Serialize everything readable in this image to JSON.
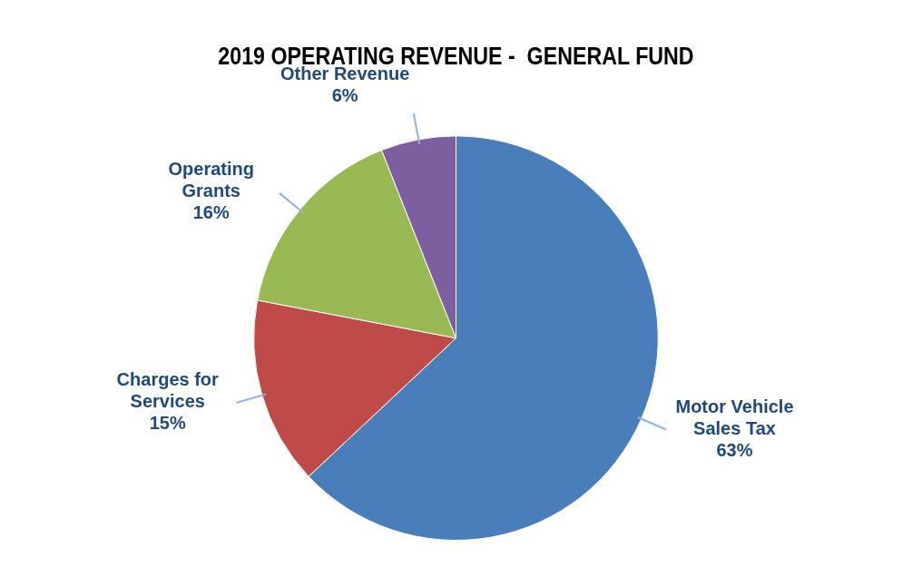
{
  "chart_data": {
    "type": "pie",
    "title": "2019 OPERATING REVENUE -  GENERAL FUND",
    "categories": [
      "Motor Vehicle Sales Tax",
      "Charges for Services",
      "Operating Grants",
      "Other Revenue"
    ],
    "values": [
      63,
      15,
      16,
      6
    ],
    "value_labels": [
      "63%",
      "15%",
      "16%",
      "6%"
    ],
    "colors": [
      "#4a7ebb",
      "#be4b48",
      "#98b954",
      "#7d5fa0"
    ],
    "legend": false
  }
}
